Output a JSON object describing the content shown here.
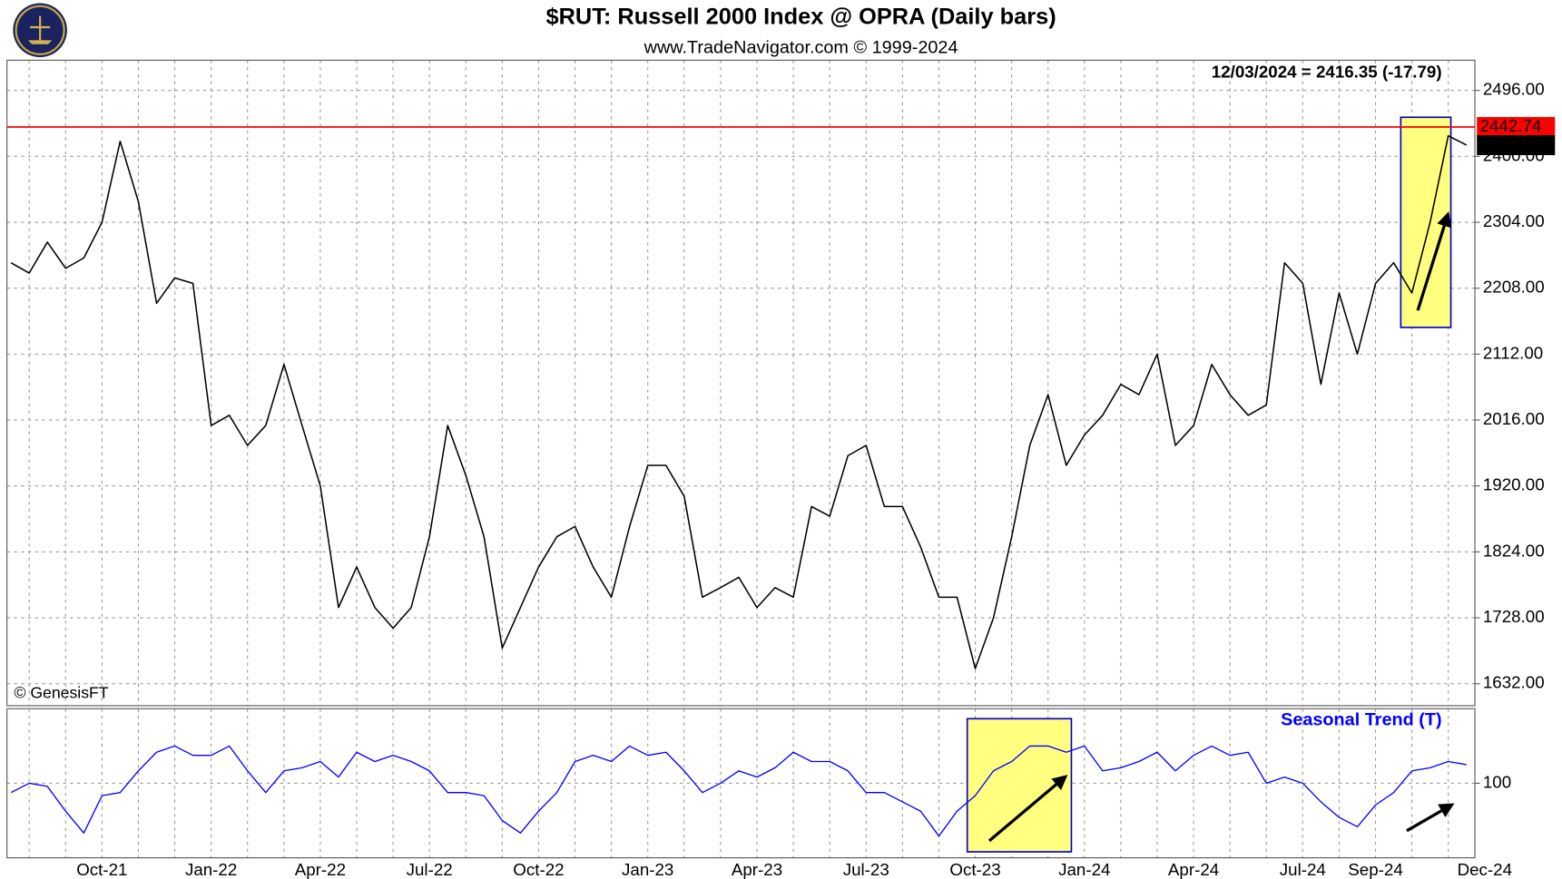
{
  "chart_data": [
    {
      "type": "line",
      "title": "$RUT:  Russell 2000 Index @ OPRA  (Daily bars)",
      "subtitle": "www.TradeNavigator.com © 1999-2024",
      "annotation": "12/03/2024 = 2416.35 (-17.79)",
      "credit": "© GenesisFT",
      "color": "#000000",
      "values": [
        2245,
        2230,
        2275,
        2237,
        2252,
        2304,
        2422,
        2334,
        2186,
        2223,
        2215,
        2008,
        2023,
        1979,
        2008,
        2097,
        2008,
        1920,
        1743,
        1802,
        1743,
        1713,
        1743,
        1846,
        2008,
        1935,
        1846,
        1684,
        1743,
        1802,
        1846,
        1861,
        1802,
        1758,
        1861,
        1950,
        1950,
        1905,
        1758,
        1772,
        1787,
        1743,
        1772,
        1758,
        1890,
        1876,
        1964,
        1979,
        1890,
        1890,
        1831,
        1758,
        1758,
        1654,
        1728,
        1846,
        1979,
        2053,
        1950,
        1994,
        2023,
        2068,
        2053,
        2112,
        1979,
        2008,
        2097,
        2053,
        2023,
        2038,
        2245,
        2215,
        2068,
        2201,
        2112,
        2215,
        2245,
        2201,
        2304,
        2430,
        2416.35,
        null
      ],
      "ylim": [
        1600,
        2540
      ],
      "yticks": [
        {
          "value": 1632,
          "label": "1632.00"
        },
        {
          "value": 1728,
          "label": "1728.00"
        },
        {
          "value": 1824,
          "label": "1824.00"
        },
        {
          "value": 1920,
          "label": "1920.00"
        },
        {
          "value": 2016,
          "label": "2016.00"
        },
        {
          "value": 2112,
          "label": "2112.00"
        },
        {
          "value": 2208,
          "label": "2208.00"
        },
        {
          "value": 2304,
          "label": "2304.00"
        },
        {
          "value": 2400,
          "label": "2400.00"
        },
        {
          "value": 2496,
          "label": "2496.00"
        }
      ],
      "hline": {
        "value": 2442.74,
        "label": "2442.74",
        "color": "#ff0000"
      },
      "last_label": {
        "value": 2416.35,
        "label": "2416.35"
      },
      "grid": true
    },
    {
      "type": "line",
      "series": [
        {
          "name": "Seasonal Trend (T)",
          "color": "#0000ff",
          "values": [
            97,
            100,
            99,
            91,
            84,
            96,
            97,
            104,
            110,
            112,
            109,
            109,
            112,
            104,
            97,
            104,
            105,
            107,
            102,
            110,
            107,
            109,
            107,
            104,
            97,
            97,
            96,
            88,
            84,
            91,
            97,
            107,
            109,
            107,
            112,
            109,
            110,
            104,
            97,
            100,
            104,
            102,
            105,
            110,
            107,
            107,
            104,
            97,
            97,
            94,
            91,
            83,
            91,
            96,
            104,
            107,
            112,
            112,
            110,
            112,
            104,
            105,
            107,
            110,
            104,
            109,
            112,
            109,
            110,
            100,
            102,
            100,
            94,
            89,
            86,
            93,
            97,
            104,
            105,
            107,
            106,
            null
          ]
        }
      ],
      "categories": [
        null,
        null,
        null,
        null,
        null,
        "Oct-21",
        null,
        null,
        null,
        null,
        null,
        "Jan-22",
        null,
        null,
        null,
        null,
        null,
        "Apr-22",
        null,
        null,
        null,
        null,
        null,
        "Jul-22",
        null,
        null,
        null,
        null,
        null,
        "Oct-22",
        null,
        null,
        null,
        null,
        null,
        "Jan-23",
        null,
        null,
        null,
        null,
        null,
        "Apr-23",
        null,
        null,
        null,
        null,
        null,
        "Jul-23",
        null,
        null,
        null,
        null,
        null,
        "Oct-23",
        null,
        null,
        null,
        null,
        null,
        "Jan-24",
        null,
        null,
        null,
        null,
        null,
        "Apr-24",
        null,
        null,
        null,
        null,
        null,
        "Jul-24",
        null,
        null,
        null,
        "Sep-24",
        null,
        null,
        null,
        null,
        null,
        "Dec-24"
      ],
      "ylim": [
        76,
        124
      ],
      "yticks": [
        100
      ],
      "grid": true
    }
  ]
}
